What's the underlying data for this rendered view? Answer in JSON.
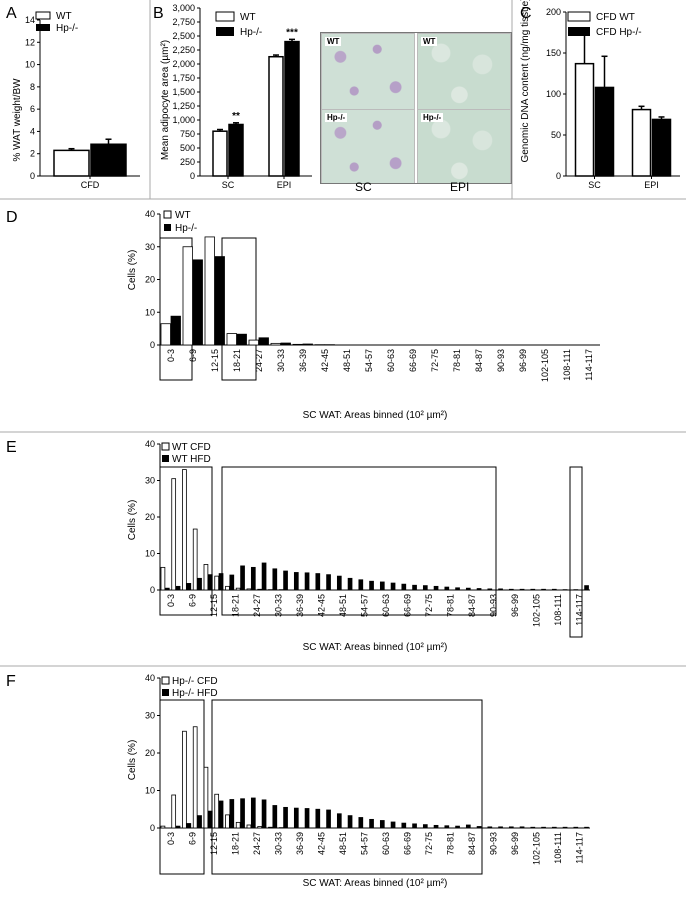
{
  "panels": {
    "A": {
      "letter": "A",
      "ylabel": "% WAT weight/BW",
      "legend": [
        "WT",
        "Hp-/-"
      ],
      "chart_data": {
        "type": "bar",
        "categories": [
          "CFD"
        ],
        "series": [
          {
            "name": "WT",
            "values": [
              2.3
            ],
            "errors": [
              0.15
            ]
          },
          {
            "name": "Hp-/-",
            "values": [
              2.85
            ],
            "errors": [
              0.45
            ]
          }
        ],
        "ylim": [
          0,
          14
        ],
        "yticks": [
          0,
          2,
          4,
          6,
          8,
          10,
          12,
          14
        ]
      }
    },
    "B": {
      "letter": "B",
      "ylabel": "Mean adipocyte area (µm²)",
      "legend": [
        "WT",
        "Hp-/-"
      ],
      "chart_data": {
        "type": "bar",
        "categories": [
          "SC",
          "EPI"
        ],
        "series": [
          {
            "name": "WT",
            "values": [
              800,
              2130
            ],
            "errors": [
              30,
              30
            ]
          },
          {
            "name": "Hp-/-",
            "values": [
              920,
              2400
            ],
            "errors": [
              30,
              40
            ]
          }
        ],
        "sig": [
          "**",
          "***"
        ],
        "ylim": [
          0,
          3000
        ],
        "yticks": [
          "0",
          "250",
          "500",
          "750",
          "1,000",
          "1,250",
          "1,500",
          "1,750",
          "2,000",
          "2,250",
          "2,500",
          "2,750",
          "3,000"
        ]
      },
      "micro": {
        "tags": [
          "WT",
          "WT",
          "Hp-/-",
          "Hp-/-"
        ],
        "captions": [
          "SC",
          "EPI"
        ]
      }
    },
    "C": {
      "letter": "C",
      "ylabel": "Genomic DNA content (ng/mg tissue)",
      "legend": [
        "CFD WT",
        "CFD Hp-/-"
      ],
      "chart_data": {
        "type": "bar",
        "categories": [
          "SC",
          "EPI"
        ],
        "series": [
          {
            "name": "CFD WT",
            "values": [
              137,
              81
            ],
            "errors": [
              40,
              4
            ]
          },
          {
            "name": "CFD Hp-/-",
            "values": [
              108,
              69
            ],
            "errors": [
              38,
              3
            ]
          }
        ],
        "ylim": [
          0,
          200
        ],
        "yticks": [
          0,
          50,
          100,
          150,
          200
        ]
      }
    },
    "D": {
      "letter": "D",
      "ylabel": "Cells (%)",
      "xlabel": "SC WAT: Areas binned (10² µm²)",
      "legend": [
        "WT",
        "Hp-/-"
      ],
      "chart_data": {
        "type": "bar",
        "ylim": [
          0,
          40
        ],
        "yticks": [
          0,
          10,
          20,
          30,
          40
        ],
        "xticks": [
          "0-3",
          "6-9",
          "12-15",
          "18-21",
          "24-27",
          "30-33",
          "36-39",
          "42-45",
          "48-51",
          "54-57",
          "60-63",
          "66-69",
          "72-75",
          "78-81",
          "84-87",
          "90-93",
          "96-99",
          "102-105",
          "108-111",
          "114-117"
        ],
        "series": [
          {
            "name": "WT",
            "values": [
              6.5,
              30,
              33,
              3.5,
              1.5,
              0.5,
              0.2,
              0.1,
              0,
              0,
              0,
              0,
              0,
              0,
              0,
              0,
              0,
              0,
              0,
              0
            ]
          },
          {
            "name": "Hp-/-",
            "values": [
              8.8,
              26,
              27,
              3.3,
              2.2,
              0.6,
              0.3,
              0.1,
              0,
              0,
              0,
              0,
              0,
              0,
              0,
              0,
              0,
              0,
              0,
              0
            ]
          }
        ]
      }
    },
    "E": {
      "letter": "E",
      "ylabel": "Cells (%)",
      "xlabel": "SC WAT: Areas binned (10² µm²)",
      "legend": [
        "WT CFD",
        "WT HFD"
      ],
      "chart_data": {
        "type": "bar",
        "ylim": [
          0,
          40
        ],
        "yticks": [
          0,
          10,
          20,
          30,
          40
        ],
        "xticks": [
          "0-3",
          "6-9",
          "12-15",
          "18-21",
          "24-27",
          "30-33",
          "36-39",
          "42-45",
          "48-51",
          "54-57",
          "60-63",
          "66-69",
          "72-75",
          "78-81",
          "84-87",
          "90-93",
          "96-99",
          "102-105",
          "108-111",
          "114-117"
        ],
        "series": [
          {
            "name": "WT CFD",
            "values": [
              6.2,
              30.5,
              33,
              16.7,
              7,
              3.8,
              1,
              0.5,
              0.3,
              0.2,
              0.1,
              0.1,
              0,
              0,
              0,
              0,
              0,
              0,
              0,
              0,
              0,
              0,
              0,
              0,
              0,
              0,
              0,
              0,
              0,
              0,
              0,
              0,
              0,
              0,
              0,
              0,
              0,
              0,
              0,
              0
            ]
          },
          {
            "name": "WT HFD",
            "values": [
              0.5,
              1,
              1.8,
              3.2,
              4.2,
              4.5,
              4.1,
              6.6,
              6.2,
              7.4,
              5.8,
              5.2,
              4.8,
              4.7,
              4.5,
              4.2,
              3.8,
              3.2,
              2.8,
              2.4,
              2.2,
              1.9,
              1.6,
              1.3,
              1.2,
              1,
              0.8,
              0.6,
              0.5,
              0.4,
              0.3,
              0.3,
              0.2,
              0.2,
              0.2,
              0.2,
              0.2,
              0.1,
              0.1,
              1.2
            ]
          }
        ]
      }
    },
    "F": {
      "letter": "F",
      "ylabel": "Cells (%)",
      "xlabel": "SC WAT: Areas binned (10² µm²)",
      "legend": [
        "Hp-/- CFD",
        "Hp-/- HFD"
      ],
      "chart_data": {
        "type": "bar",
        "ylim": [
          0,
          40
        ],
        "yticks": [
          0,
          10,
          20,
          30,
          40
        ],
        "xticks": [
          "0-3",
          "6-9",
          "12-15",
          "18-21",
          "24-27",
          "30-33",
          "36-39",
          "42-45",
          "48-51",
          "54-57",
          "60-63",
          "66-69",
          "72-75",
          "78-81",
          "84-87",
          "90-93",
          "96-99",
          "102-105",
          "108-111",
          "114-117"
        ],
        "series": [
          {
            "name": "Hp-/- CFD",
            "values": [
              0.5,
              8.8,
              25.8,
              27,
              16.2,
              9,
              3.5,
              1.5,
              0.8,
              0.4,
              0.2,
              0.1,
              0,
              0,
              0,
              0,
              0,
              0,
              0,
              0,
              0,
              0,
              0,
              0,
              0,
              0,
              0,
              0,
              0,
              0,
              0,
              0,
              0,
              0,
              0,
              0,
              0,
              0,
              0,
              0
            ]
          },
          {
            "name": "Hp-/- HFD",
            "values": [
              0,
              0.5,
              1.2,
              3.3,
              4.5,
              7.2,
              7.6,
              7.8,
              8,
              7.5,
              6,
              5.5,
              5.3,
              5.2,
              5,
              4.8,
              3.8,
              3.3,
              2.8,
              2.3,
              2,
              1.6,
              1.3,
              1.1,
              0.9,
              0.7,
              0.6,
              0.5,
              0.8,
              0.4,
              0.3,
              0.3,
              0.3,
              0.3,
              0.2,
              0.2,
              0.2,
              0.2,
              0.2,
              0.2
            ]
          }
        ]
      }
    }
  }
}
